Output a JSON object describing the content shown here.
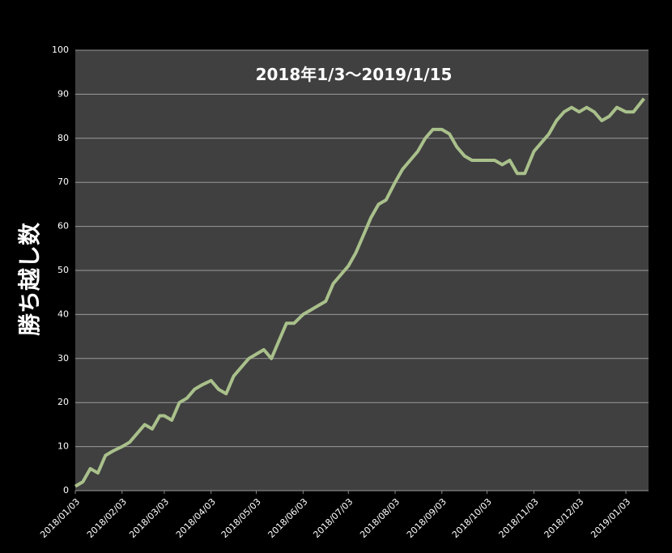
{
  "chart_data": {
    "type": "line",
    "title": "2018年1/3～2019/1/15",
    "y_label": "勝ち越し数",
    "x": [
      "2018/01/03",
      "2018/01/08",
      "2018/01/13",
      "2018/01/18",
      "2018/01/23",
      "2018/01/28",
      "2018/02/03",
      "2018/02/08",
      "2018/02/13",
      "2018/02/18",
      "2018/02/23",
      "2018/02/28",
      "2018/03/03",
      "2018/03/08",
      "2018/03/13",
      "2018/03/18",
      "2018/03/23",
      "2018/03/28",
      "2018/04/03",
      "2018/04/08",
      "2018/04/13",
      "2018/04/18",
      "2018/04/23",
      "2018/04/28",
      "2018/05/03",
      "2018/05/08",
      "2018/05/13",
      "2018/05/18",
      "2018/05/23",
      "2018/05/28",
      "2018/06/03",
      "2018/06/08",
      "2018/06/13",
      "2018/06/18",
      "2018/06/23",
      "2018/06/28",
      "2018/07/03",
      "2018/07/08",
      "2018/07/13",
      "2018/07/18",
      "2018/07/23",
      "2018/07/28",
      "2018/08/03",
      "2018/08/08",
      "2018/08/13",
      "2018/08/18",
      "2018/08/23",
      "2018/08/28",
      "2018/09/03",
      "2018/09/08",
      "2018/09/13",
      "2018/09/18",
      "2018/09/23",
      "2018/09/28",
      "2018/10/03",
      "2018/10/08",
      "2018/10/13",
      "2018/10/18",
      "2018/10/23",
      "2018/10/28",
      "2018/11/03",
      "2018/11/08",
      "2018/11/13",
      "2018/11/18",
      "2018/11/23",
      "2018/11/28",
      "2018/12/03",
      "2018/12/08",
      "2018/12/13",
      "2018/12/18",
      "2018/12/23",
      "2018/12/28",
      "2019/01/03",
      "2019/01/08",
      "2019/01/15"
    ],
    "series": [
      {
        "name": "勝ち越し数",
        "color": "#a9c08b",
        "values": [
          1,
          2,
          5,
          4,
          8,
          9,
          10,
          11,
          13,
          15,
          14,
          17,
          17,
          16,
          20,
          21,
          23,
          24,
          25,
          23,
          22,
          26,
          28,
          30,
          31,
          32,
          30,
          34,
          38,
          38,
          40,
          41,
          42,
          43,
          47,
          49,
          51,
          54,
          58,
          62,
          65,
          66,
          70,
          73,
          75,
          77,
          80,
          82,
          82,
          81,
          78,
          76,
          75,
          75,
          75,
          75,
          74,
          75,
          72,
          72,
          77,
          79,
          81,
          84,
          86,
          87,
          86,
          87,
          86,
          84,
          85,
          87,
          86,
          86,
          89
        ]
      }
    ],
    "xlim": [
      "2018/01/03",
      "2019/01/18"
    ],
    "xticks": [
      "2018/01/03",
      "2018/02/03",
      "2018/03/03",
      "2018/04/03",
      "2018/05/03",
      "2018/06/03",
      "2018/07/03",
      "2018/08/03",
      "2018/09/03",
      "2018/10/03",
      "2018/11/03",
      "2018/12/03",
      "2019/01/03"
    ],
    "ylim": [
      0,
      100
    ],
    "yticks": [
      0,
      10,
      20,
      30,
      40,
      50,
      60,
      70,
      80,
      90,
      100
    ],
    "grid": true
  }
}
